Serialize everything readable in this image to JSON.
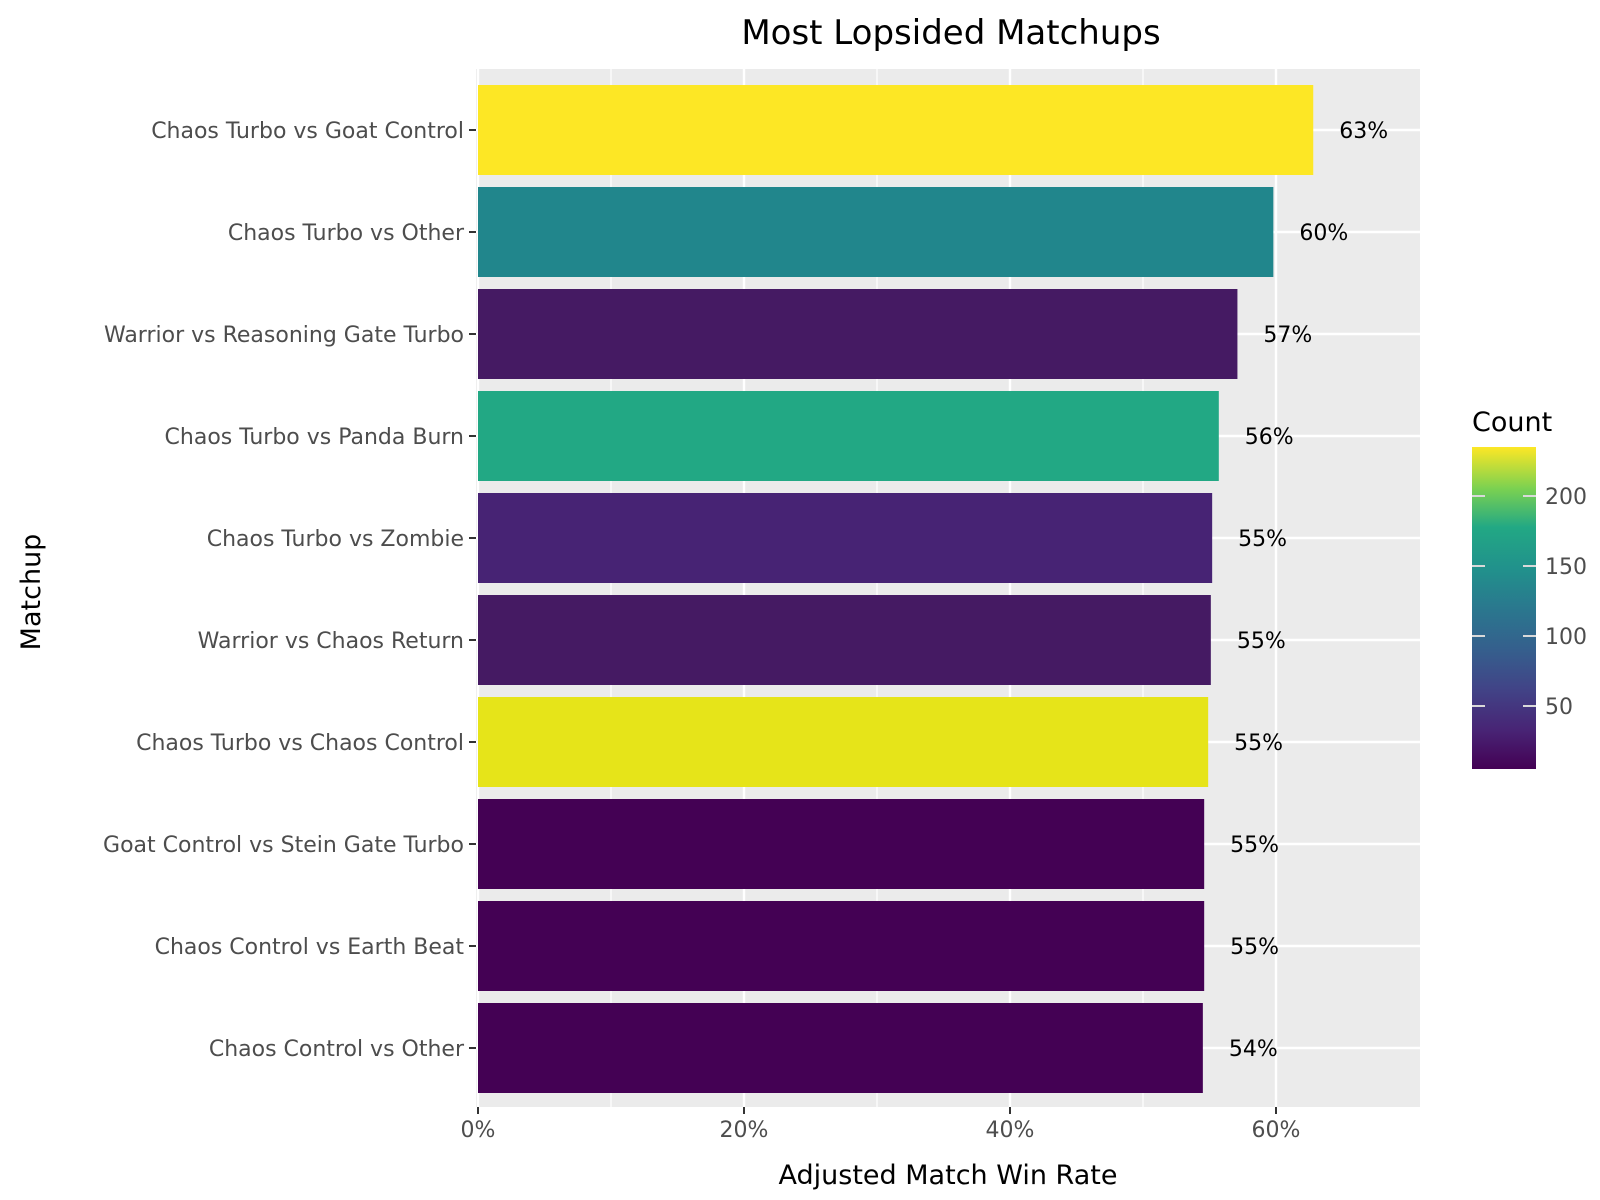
{
  "chart_data": {
    "type": "bar",
    "orientation": "horizontal",
    "title": "Most Lopsided Matchups",
    "xlabel": "Adjusted Match Win Rate",
    "ylabel": "Matchup",
    "xlim": [
      0,
      0.7
    ],
    "x_ticks": [
      0,
      0.2,
      0.4,
      0.6
    ],
    "x_tick_labels": [
      "0%",
      "20%",
      "40%",
      "60%"
    ],
    "grid": true,
    "legend_position": "right",
    "colorbar": {
      "title": "Count",
      "min": 5,
      "max": 235,
      "ticks": [
        50,
        100,
        150,
        200
      ],
      "tick_labels": [
        "50",
        "100",
        "150",
        "200"
      ],
      "palette": [
        "#440154",
        "#3b528b",
        "#21908c",
        "#5dc863",
        "#fde725"
      ]
    },
    "categories": [
      "Chaos Turbo vs Goat Control",
      "Chaos Turbo vs Other",
      "Warrior vs Reasoning Gate Turbo",
      "Chaos Turbo vs Panda Burn",
      "Chaos Turbo vs Zombie",
      "Warrior vs Chaos Return",
      "Chaos Turbo vs Chaos Control",
      "Goat Control vs Stein Gate Turbo",
      "Chaos Control vs Earth Beat",
      "Chaos Control vs Other"
    ],
    "values": [
      0.628,
      0.598,
      0.571,
      0.557,
      0.552,
      0.551,
      0.549,
      0.546,
      0.546,
      0.545
    ],
    "value_labels": [
      "63%",
      "60%",
      "57%",
      "56%",
      "55%",
      "55%",
      "55%",
      "55%",
      "55%",
      "54%"
    ],
    "counts": [
      235,
      110,
      20,
      155,
      30,
      20,
      225,
      8,
      8,
      8
    ],
    "colors": [
      "#fde725",
      "#21868c",
      "#451a63",
      "#22a884",
      "#472374",
      "#451a63",
      "#e6e419",
      "#440154",
      "#440154",
      "#440154"
    ]
  }
}
